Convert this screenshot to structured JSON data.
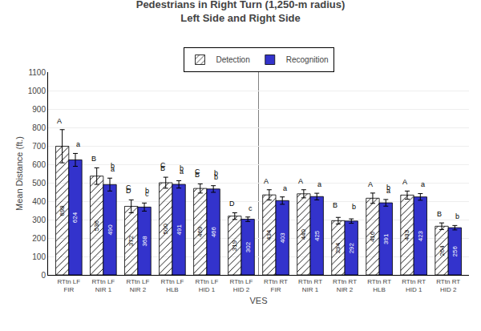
{
  "chart_data": {
    "type": "bar",
    "title": "Pedestrians in Right Turn (1,250-m radius)\nLeft Side and Right Side",
    "xlabel": "VES",
    "ylabel": "Mean Distance (ft.)",
    "categories": [
      "RTtn LF\nFIR",
      "RTtn LF\nNIR 1",
      "RTtn LF\nNIR 2",
      "RTtn LF\nHLB",
      "RTtn LF\nHID 1",
      "RTtn LF\nHID 2",
      "RTtn RT\nFIR",
      "RTtn RT\nNIR 1",
      "RTtn RT\nNIR 2",
      "RTtn RT\nHLB",
      "RTtn RT\nHID 1",
      "RTtn RT\nHID 2"
    ],
    "series": [
      {
        "name": "Detection",
        "color": "#ffffff",
        "values": [
          698,
          536,
          372,
          500,
          469,
          319,
          434,
          440,
          294,
          416,
          433,
          264
        ],
        "errors": [
          90,
          45,
          35,
          30,
          25,
          18,
          28,
          22,
          18,
          28,
          22,
          18
        ],
        "annotations": [
          [
            "A",
            null
          ],
          [
            "B",
            null
          ],
          [
            "D",
            "C"
          ],
          [
            "B",
            "C"
          ],
          [
            "B",
            "C"
          ],
          [
            "D",
            null
          ],
          [
            "A",
            null
          ],
          [
            "A",
            null
          ],
          [
            null,
            "B"
          ],
          [
            "A",
            null
          ],
          [
            "A",
            null
          ],
          [
            "B",
            null
          ]
        ]
      },
      {
        "name": "Recognition",
        "color": "#3333cc",
        "values": [
          624,
          490,
          368,
          491,
          466,
          302,
          403,
          425,
          292,
          391,
          423,
          256
        ],
        "errors": [
          35,
          35,
          22,
          20,
          18,
          12,
          20,
          18,
          12,
          18,
          18,
          12
        ],
        "annotations": [
          [
            "a",
            null
          ],
          [
            "a",
            "b"
          ],
          [
            "c",
            "b"
          ],
          [
            "a",
            "b"
          ],
          [
            "b",
            "b"
          ],
          [
            "c",
            null
          ],
          [
            "a",
            null
          ],
          [
            "a",
            null
          ],
          [
            null,
            "b"
          ],
          [
            "a",
            "b"
          ],
          [
            "a",
            null
          ],
          [
            "b",
            null
          ]
        ]
      }
    ],
    "ylim": [
      0,
      1100
    ],
    "yticks": [
      0,
      100,
      200,
      300,
      400,
      500,
      600,
      700,
      800,
      900,
      1000,
      1100
    ],
    "grid": true,
    "legend": "top",
    "data_labels": true
  }
}
